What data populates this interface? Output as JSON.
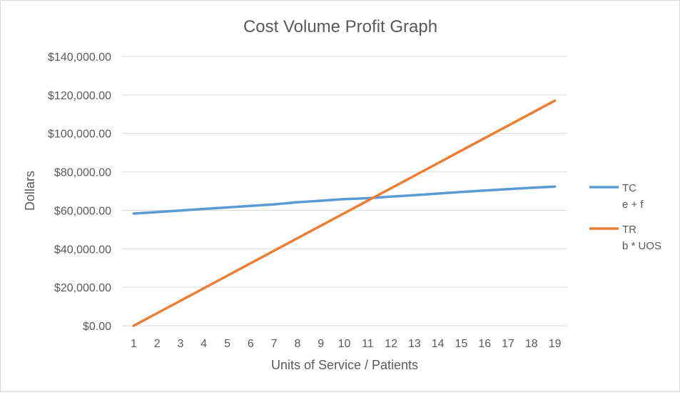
{
  "chart_data": {
    "type": "line",
    "title": "Cost Volume Profit Graph",
    "xlabel": "Units of Service / Patients",
    "ylabel": "Dollars",
    "categories": [
      "1",
      "2",
      "3",
      "4",
      "5",
      "6",
      "7",
      "8",
      "9",
      "10",
      "11",
      "12",
      "13",
      "14",
      "15",
      "16",
      "17",
      "18",
      "19"
    ],
    "ylim": [
      0,
      140000
    ],
    "yticks": [
      0,
      20000,
      40000,
      60000,
      80000,
      100000,
      120000,
      140000
    ],
    "ytick_labels": [
      "$0.00",
      "$20,000.00",
      "$40,000.00",
      "$60,000.00",
      "$80,000.00",
      "$100,000.00",
      "$120,000.00",
      "$140,000.00"
    ],
    "grid": true,
    "legend_position": "right",
    "series": [
      {
        "name": "TC",
        "legend_lines": [
          "TC",
          "e + f"
        ],
        "color": "#5b9bd5",
        "values": [
          58300,
          59100,
          59900,
          60700,
          61500,
          62300,
          63100,
          64200,
          65000,
          65800,
          66300,
          67100,
          67900,
          68700,
          69500,
          70300,
          71000,
          71700,
          72300
        ]
      },
      {
        "name": "TR",
        "legend_lines": [
          "TR",
          "b * UOS"
        ],
        "color": "#ed7d31",
        "values": [
          0,
          6500,
          13000,
          19500,
          26000,
          32500,
          39000,
          45500,
          52000,
          58500,
          65000,
          71500,
          78000,
          84500,
          91000,
          97500,
          104000,
          110500,
          117000
        ]
      }
    ]
  }
}
